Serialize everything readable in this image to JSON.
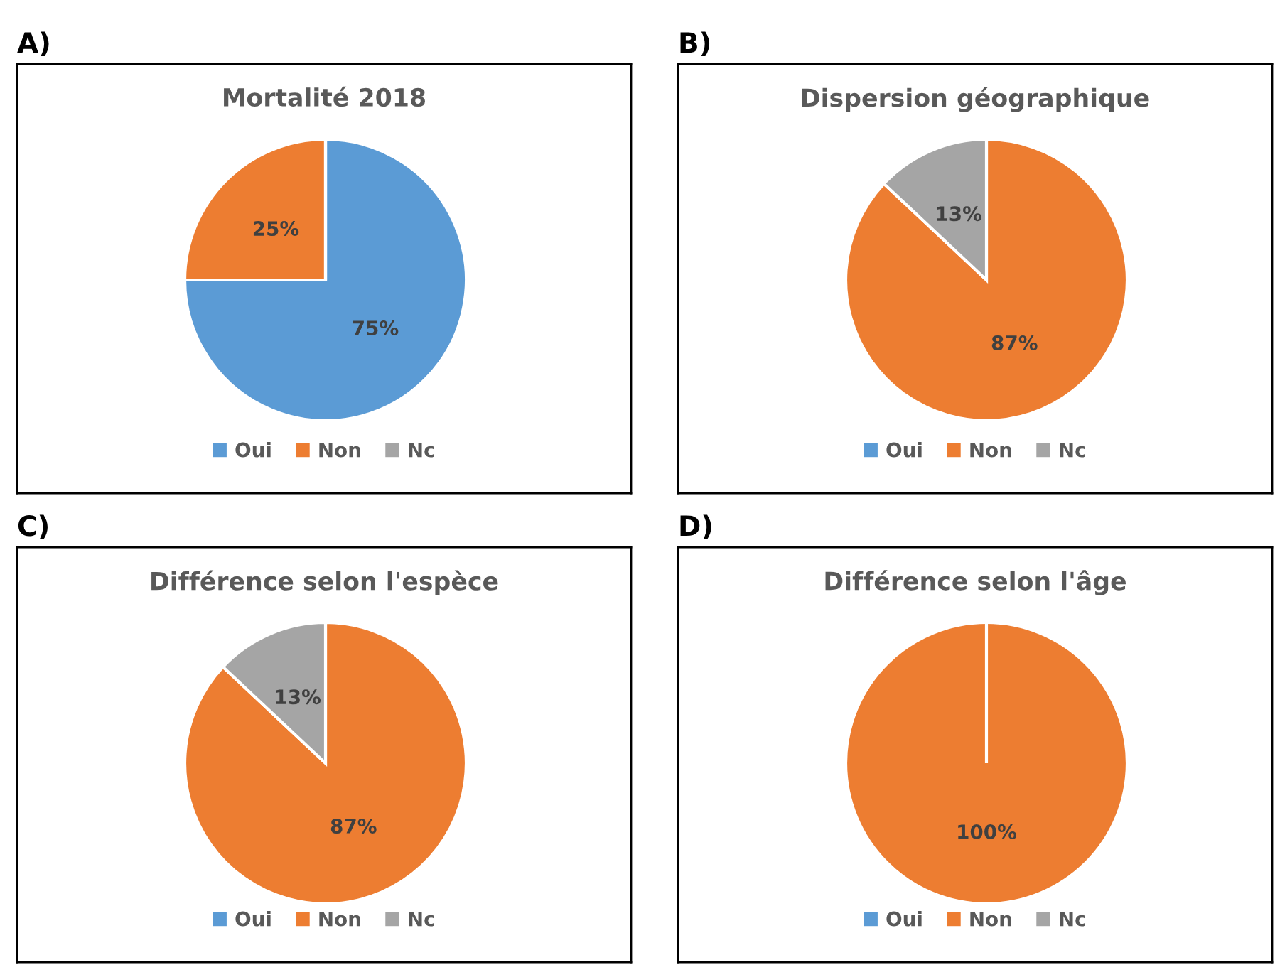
{
  "chart_data": [
    {
      "type": "pie",
      "title": "Mortalité 2018",
      "annotations": [
        "A)"
      ],
      "categories": [
        "Oui",
        "Non",
        "Nc"
      ],
      "values": [
        75,
        25,
        0
      ],
      "colors": [
        "#5b9bd5",
        "#ed7d31",
        "#a5a5a5"
      ],
      "value_labels": [
        "75%",
        "25%",
        null
      ],
      "legend": "bottom"
    },
    {
      "type": "pie",
      "title": "Dispersion géographique",
      "annotations": [
        "B)"
      ],
      "categories": [
        "Oui",
        "Non",
        "Nc"
      ],
      "values": [
        0,
        87,
        13
      ],
      "colors": [
        "#5b9bd5",
        "#ed7d31",
        "#a5a5a5"
      ],
      "value_labels": [
        null,
        "87%",
        "13%"
      ],
      "legend": "bottom"
    },
    {
      "type": "pie",
      "title": "Différence selon l'espèce",
      "annotations": [
        "C)"
      ],
      "categories": [
        "Oui",
        "Non",
        "Nc"
      ],
      "values": [
        0,
        87,
        13
      ],
      "colors": [
        "#5b9bd5",
        "#ed7d31",
        "#a5a5a5"
      ],
      "value_labels": [
        null,
        "87%",
        "13%"
      ],
      "legend": "bottom"
    },
    {
      "type": "pie",
      "title": "Différence selon l'âge",
      "annotations": [
        "D)"
      ],
      "categories": [
        "Oui",
        "Non",
        "Nc"
      ],
      "values": [
        0,
        100,
        0
      ],
      "colors": [
        "#5b9bd5",
        "#ed7d31",
        "#a5a5a5"
      ],
      "value_labels": [
        null,
        "100%",
        null
      ],
      "legend": "bottom"
    }
  ]
}
